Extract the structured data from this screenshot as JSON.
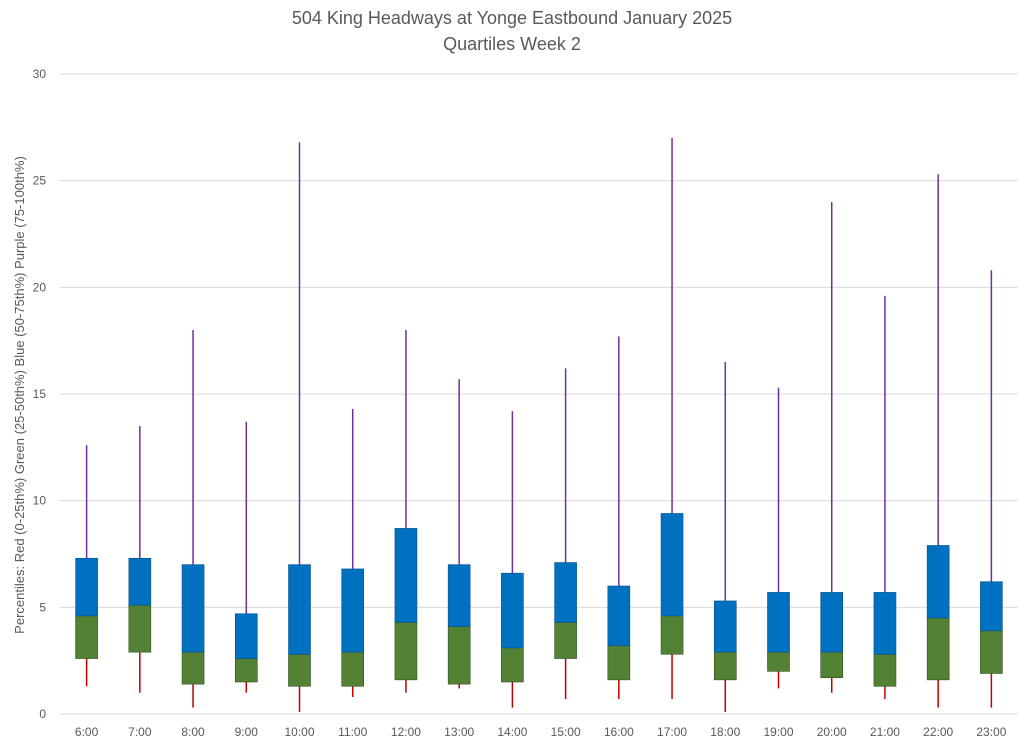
{
  "chart_data": {
    "type": "box",
    "title": "504 King Headways at Yonge Eastbound January 2025",
    "subtitle": "Quartiles Week 2",
    "xlabel": "",
    "ylabel": "Percentiles: Red (0-25th%) Green (25-50th%) Blue (50-75th%) Purple (75-100th%)",
    "ylim": [
      0,
      30
    ],
    "yticks": [
      "0",
      "5",
      "10",
      "15",
      "20",
      "25",
      "30"
    ],
    "grid": true,
    "colors": {
      "q1": "#c00000",
      "q2": "#548235",
      "q3": "#0070c0",
      "q4": "#7030a0"
    },
    "categories": [
      "6:00",
      "7:00",
      "8:00",
      "9:00",
      "10:00",
      "11:00",
      "12:00",
      "13:00",
      "14:00",
      "15:00",
      "16:00",
      "17:00",
      "18:00",
      "19:00",
      "20:00",
      "21:00",
      "22:00",
      "23:00"
    ],
    "min": [
      1.3,
      1.0,
      0.3,
      1.0,
      0.1,
      0.8,
      1.0,
      1.2,
      0.3,
      0.7,
      0.7,
      0.7,
      0.1,
      1.2,
      1.0,
      0.7,
      0.3,
      0.3
    ],
    "q1": [
      2.6,
      2.9,
      1.4,
      1.5,
      1.3,
      1.3,
      1.6,
      1.4,
      1.5,
      2.6,
      1.6,
      2.8,
      1.6,
      2.0,
      1.7,
      1.3,
      1.6,
      1.9
    ],
    "median": [
      4.6,
      5.1,
      2.9,
      2.6,
      2.8,
      2.9,
      4.3,
      4.1,
      3.1,
      4.3,
      3.2,
      4.6,
      2.9,
      2.9,
      2.9,
      2.8,
      4.5,
      3.9
    ],
    "q3": [
      7.3,
      7.3,
      7.0,
      4.7,
      7.0,
      6.8,
      8.7,
      7.0,
      6.6,
      7.1,
      6.0,
      9.4,
      5.3,
      5.7,
      5.7,
      5.7,
      7.9,
      6.2
    ],
    "max": [
      12.6,
      13.5,
      18.0,
      13.7,
      26.8,
      14.3,
      18.0,
      15.7,
      14.2,
      16.2,
      17.7,
      27.0,
      16.5,
      15.3,
      24.0,
      19.6,
      25.3,
      20.8
    ]
  }
}
